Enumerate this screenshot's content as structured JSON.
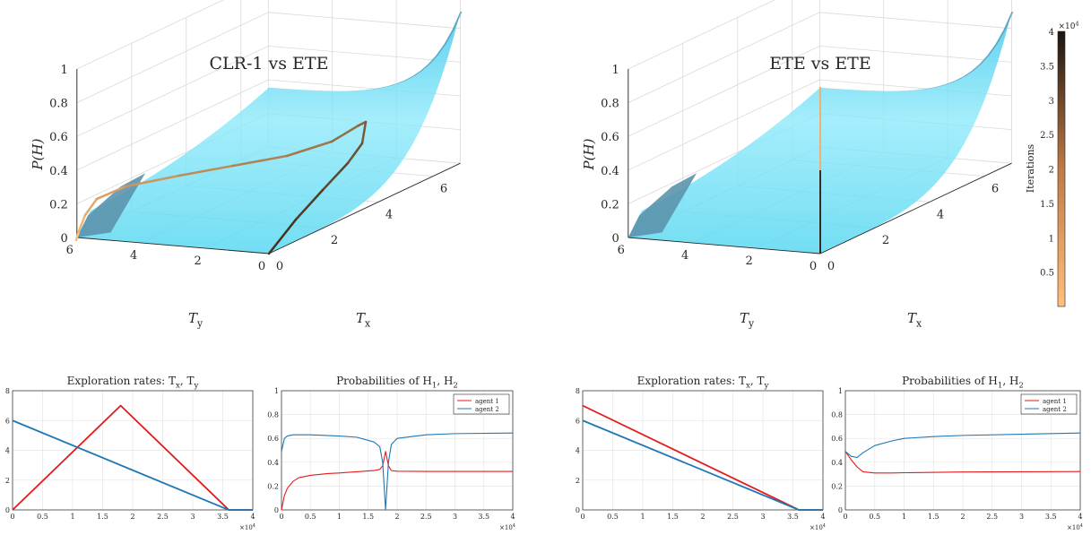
{
  "chart_data": [
    {
      "type": "surface3d",
      "title": "CLR-1 vs ETE",
      "zlabel": "P(H)",
      "xlabel": "T_x",
      "ylabel": "T_y",
      "zlim": [
        0,
        1
      ],
      "xlim": [
        0,
        7
      ],
      "ylim": [
        0,
        6
      ],
      "zticks": [
        "0",
        "0.2",
        "0.4",
        "0.6",
        "0.8",
        "1"
      ],
      "xticks": [
        "0",
        "2",
        "4",
        "6"
      ],
      "yticks": [
        "0",
        "2",
        "4",
        "6"
      ],
      "surface_color": "#5ad8f0",
      "trajectory": {
        "description_points": [
          [
            0.0,
            6.0,
            0.0
          ],
          [
            0.5,
            5.8,
            0.1
          ],
          [
            1.5,
            5.4,
            0.22
          ],
          [
            3.0,
            4.8,
            0.31
          ],
          [
            4.5,
            4.2,
            0.38
          ],
          [
            5.7,
            3.8,
            0.5
          ],
          [
            6.8,
            3.2,
            0.65
          ],
          [
            7.0,
            3.0,
            0.7
          ],
          [
            5.5,
            2.3,
            0.52
          ],
          [
            4.0,
            1.6,
            0.36
          ],
          [
            2.0,
            0.8,
            0.22
          ],
          [
            0.0,
            0.0,
            0.0
          ]
        ]
      }
    },
    {
      "type": "surface3d",
      "title": "ETE vs ETE",
      "zlabel": "P(H)",
      "xlabel": "T_x",
      "ylabel": "T_y",
      "zlim": [
        0,
        1
      ],
      "xlim": [
        0,
        7
      ],
      "ylim": [
        0,
        6
      ],
      "zticks": [
        "0",
        "0.2",
        "0.4",
        "0.6",
        "0.8",
        "1"
      ],
      "xticks": [
        "0",
        "2",
        "4",
        "6"
      ],
      "yticks": [
        "0",
        "2",
        "4",
        "6"
      ],
      "surface_color": "#5ad8f0",
      "colorbar": {
        "label": "Iterations",
        "exponent": "×10^4",
        "ticks": [
          "0.5",
          "1",
          "1.5",
          "2",
          "2.5",
          "3",
          "3.5",
          "4"
        ],
        "range": [
          0,
          4
        ]
      }
    },
    {
      "type": "line",
      "title": "Exploration rates: T_x, T_y",
      "xlim": [
        0,
        4
      ],
      "ylim": [
        0,
        8
      ],
      "xticks": [
        "0",
        "0.5",
        "1",
        "1.5",
        "2",
        "2.5",
        "3",
        "3.5",
        "4"
      ],
      "yticks": [
        "0",
        "2",
        "4",
        "6",
        "8"
      ],
      "x_exponent": "×10^4",
      "series": [
        {
          "color": "#e41a1c",
          "x": [
            0,
            1.8,
            3.6,
            4.0
          ],
          "y": [
            0,
            7,
            0,
            0
          ]
        },
        {
          "color": "#1f77b4",
          "x": [
            0,
            3.6,
            4.0
          ],
          "y": [
            6,
            0,
            0
          ]
        }
      ]
    },
    {
      "type": "line",
      "title": "Probabilities of H_1, H_2",
      "xlim": [
        0,
        4
      ],
      "ylim": [
        0,
        1
      ],
      "xticks": [
        "0",
        "0.5",
        "1",
        "1.5",
        "2",
        "2.5",
        "3",
        "3.5",
        "4"
      ],
      "yticks": [
        "0",
        "0.2",
        "0.4",
        "0.6",
        "0.8",
        "1"
      ],
      "x_exponent": "×10^4",
      "legend": "top-right",
      "series": [
        {
          "name": "agent 1",
          "color": "#e41a1c",
          "x": [
            0,
            0.05,
            0.1,
            0.2,
            0.3,
            0.5,
            0.8,
            1.0,
            1.3,
            1.6,
            1.7,
            1.75,
            1.8,
            1.85,
            1.9,
            2.0,
            2.5,
            3.0,
            4.0
          ],
          "y": [
            0.0,
            0.12,
            0.18,
            0.24,
            0.27,
            0.29,
            0.305,
            0.31,
            0.32,
            0.33,
            0.34,
            0.37,
            0.49,
            0.37,
            0.33,
            0.325,
            0.323,
            0.323,
            0.323
          ]
        },
        {
          "name": "agent 2",
          "color": "#1f77b4",
          "x": [
            0,
            0.05,
            0.1,
            0.2,
            0.5,
            1.0,
            1.3,
            1.6,
            1.7,
            1.75,
            1.8,
            1.85,
            1.9,
            2.0,
            2.5,
            3.0,
            4.0
          ],
          "y": [
            0.49,
            0.6,
            0.62,
            0.63,
            0.63,
            0.62,
            0.61,
            0.57,
            0.53,
            0.4,
            0.0,
            0.4,
            0.55,
            0.6,
            0.63,
            0.64,
            0.645
          ]
        }
      ]
    },
    {
      "type": "line",
      "title": "Exploration rates: T_x, T_y",
      "xlim": [
        0,
        4
      ],
      "ylim": [
        0,
        8
      ],
      "xticks": [
        "0",
        "0.5",
        "1",
        "1.5",
        "2",
        "2.5",
        "3",
        "3.5",
        "4"
      ],
      "yticks": [
        "0",
        "2",
        "4",
        "6",
        "8"
      ],
      "x_exponent": "×10^4",
      "series": [
        {
          "color": "#e41a1c",
          "x": [
            0,
            3.6,
            4.0
          ],
          "y": [
            7,
            0,
            0
          ]
        },
        {
          "color": "#1f77b4",
          "x": [
            0,
            3.6,
            4.0
          ],
          "y": [
            6,
            0,
            0
          ]
        }
      ]
    },
    {
      "type": "line",
      "title": "Probabilities of H_1, H_2",
      "xlim": [
        0,
        4
      ],
      "ylim": [
        0,
        1
      ],
      "xticks": [
        "0",
        "0.5",
        "1",
        "1.5",
        "2",
        "2.5",
        "3",
        "3.5",
        "4"
      ],
      "yticks": [
        "0",
        "0.2",
        "0.4",
        "0.6",
        "0.8",
        "1"
      ],
      "x_exponent": "×10^4",
      "legend": "top-right",
      "series": [
        {
          "name": "agent 1",
          "color": "#e41a1c",
          "x": [
            0,
            0.1,
            0.2,
            0.3,
            0.5,
            0.8,
            1.0,
            2.0,
            3.0,
            4.0
          ],
          "y": [
            0.49,
            0.42,
            0.36,
            0.32,
            0.31,
            0.31,
            0.312,
            0.318,
            0.32,
            0.322
          ]
        },
        {
          "name": "agent 2",
          "color": "#1f77b4",
          "x": [
            0,
            0.1,
            0.2,
            0.3,
            0.5,
            0.8,
            1.0,
            1.5,
            2.0,
            3.0,
            4.0
          ],
          "y": [
            0.49,
            0.45,
            0.44,
            0.48,
            0.54,
            0.58,
            0.6,
            0.615,
            0.625,
            0.635,
            0.645
          ]
        }
      ]
    }
  ]
}
